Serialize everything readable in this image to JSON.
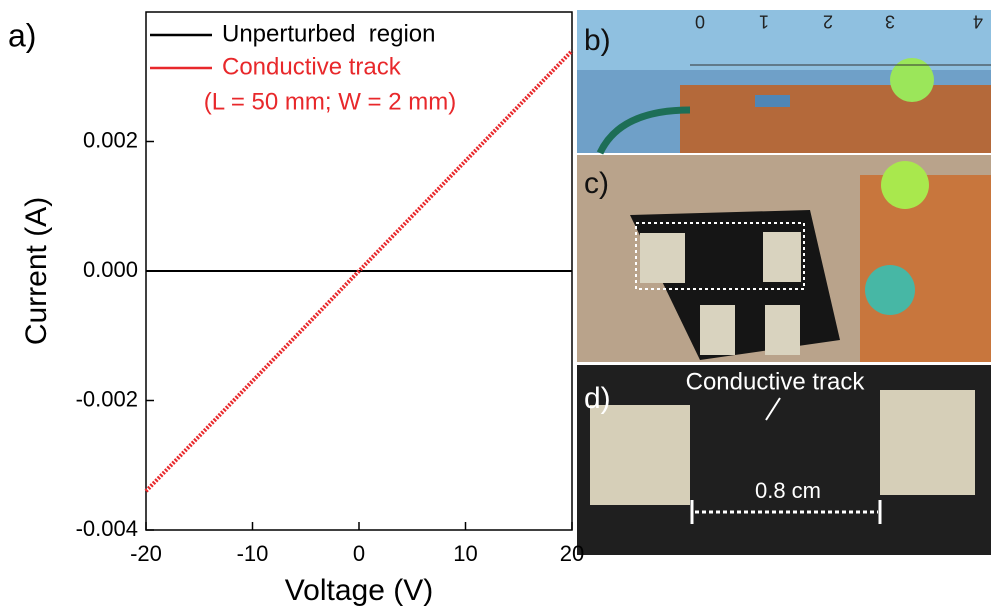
{
  "chart_data": {
    "type": "line",
    "panel_label": "a)",
    "x_label": "Voltage (V)",
    "y_label": "Current (A)",
    "x": [
      -20,
      20
    ],
    "series": [
      {
        "name": "Unperturbed  region",
        "color": "#000000",
        "values": [
          0,
          0
        ]
      },
      {
        "name": "Conductive track",
        "color": "#e8282b",
        "values": [
          -0.0034,
          0.0034
        ]
      }
    ],
    "annotation": "(L = 50 mm; W = 2 mm)",
    "xlim": [
      -20,
      20
    ],
    "xticks": [
      -20,
      -10,
      0,
      10,
      20
    ],
    "ylim": [
      -0.004,
      0.004
    ],
    "yticks": [
      -0.004,
      -0.002,
      {
        "value": 0,
        "label": "0.000"
      },
      0.002
    ],
    "legend": "upper-left"
  },
  "photos": {
    "panels": [
      "b)",
      "c)",
      "d)"
    ],
    "ruler_labels": [
      "0",
      "1",
      "2",
      "3",
      "4"
    ],
    "track_label": "Conductive track",
    "gap_label": "0.8 cm"
  }
}
